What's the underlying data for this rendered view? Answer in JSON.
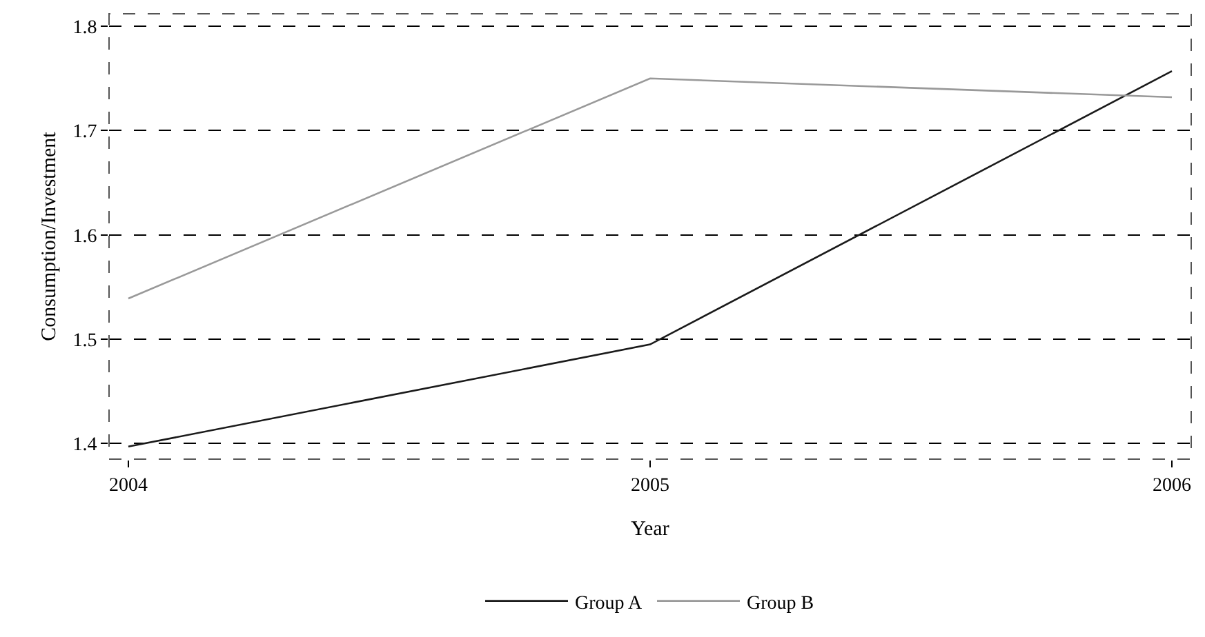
{
  "chart_data": {
    "type": "line",
    "xlabel": "Year",
    "ylabel": "Consumption/Investment",
    "x": [
      2004,
      2005,
      2006
    ],
    "series": [
      {
        "name": "Group A",
        "color": "#1a1a1a",
        "values": [
          1.397,
          1.495,
          1.757
        ]
      },
      {
        "name": "Group B",
        "color": "#999999",
        "values": [
          1.539,
          1.75,
          1.732
        ]
      }
    ],
    "xlim": [
      2003.963,
      2006.037
    ],
    "xticks": [
      2004,
      2005,
      2006
    ],
    "ylim": [
      1.385,
      1.812
    ],
    "yticks": [
      {
        "value": 1.4,
        "label": "1.4"
      },
      {
        "value": 1.5,
        "label": "1.5"
      },
      {
        "value": 1.6,
        "label": "1.6"
      },
      {
        "value": 1.7,
        "label": "1.7"
      },
      {
        "value": 1.8,
        "label": "1.8"
      }
    ],
    "grid": "y",
    "legend": "bottom",
    "marker": "none",
    "line_style": "solid"
  }
}
